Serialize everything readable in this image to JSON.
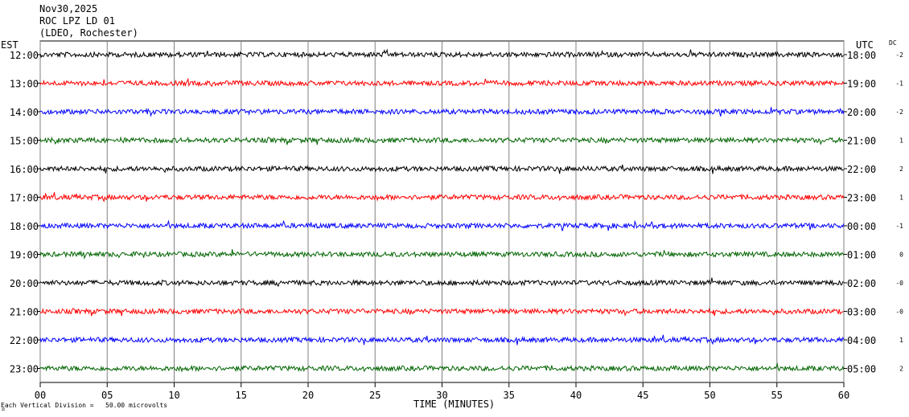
{
  "header": {
    "date": "Nov30,2025",
    "station": "ROC LPZ LD 01",
    "network": "(LDEO, Rochester)"
  },
  "left_zone_label": "EST",
  "right_zone_label": "UTC",
  "dc_label": "DC",
  "footnote": "Each Vertical Division =   50.00 microvolts",
  "chart_data": {
    "type": "line",
    "title": "",
    "xlabel": "TIME (MINUTES)",
    "xlim": [
      0,
      60
    ],
    "x_ticks": [
      "00",
      "05",
      "10",
      "15",
      "20",
      "25",
      "30",
      "35",
      "40",
      "45",
      "50",
      "55",
      "60"
    ],
    "grid": true,
    "rows": [
      {
        "est": "12:00",
        "utc": "18:00",
        "dc": "-2",
        "color": "#000000"
      },
      {
        "est": "13:00",
        "utc": "19:00",
        "dc": "-1",
        "color": "#ff0000"
      },
      {
        "est": "14:00",
        "utc": "20:00",
        "dc": "-2",
        "color": "#0000ff"
      },
      {
        "est": "15:00",
        "utc": "21:00",
        "dc": "1",
        "color": "#006400"
      },
      {
        "est": "16:00",
        "utc": "22:00",
        "dc": "2",
        "color": "#000000"
      },
      {
        "est": "17:00",
        "utc": "23:00",
        "dc": "1",
        "color": "#ff0000"
      },
      {
        "est": "18:00",
        "utc": "00:00",
        "dc": "-1",
        "color": "#0000ff"
      },
      {
        "est": "19:00",
        "utc": "01:00",
        "dc": "0",
        "color": "#006400"
      },
      {
        "est": "20:00",
        "utc": "02:00",
        "dc": "-0",
        "color": "#000000"
      },
      {
        "est": "21:00",
        "utc": "03:00",
        "dc": "-0",
        "color": "#ff0000"
      },
      {
        "est": "22:00",
        "utc": "04:00",
        "dc": "1",
        "color": "#0000ff"
      },
      {
        "est": "23:00",
        "utc": "05:00",
        "dc": "2",
        "color": "#006400"
      }
    ]
  }
}
